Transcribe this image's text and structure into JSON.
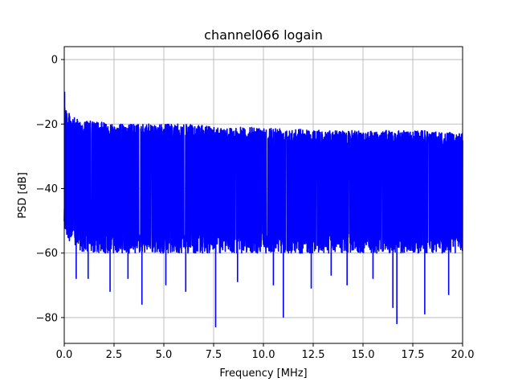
{
  "chart_data": {
    "type": "line",
    "title": "channel066 logain",
    "xlabel": "Frequency [MHz]",
    "ylabel": "PSD [dB]",
    "xlim": [
      0,
      20
    ],
    "ylim": [
      -88,
      4
    ],
    "xticks": [
      0,
      2.5,
      5,
      7.5,
      10,
      12.5,
      15,
      17.5,
      20
    ],
    "xtick_labels": [
      "0.0",
      "2.5",
      "5.0",
      "7.5",
      "10.0",
      "12.5",
      "15.0",
      "17.5",
      "20.0"
    ],
    "yticks": [
      0,
      -20,
      -40,
      -60,
      -80
    ],
    "ytick_labels": [
      "0",
      "−20",
      "−40",
      "−60",
      "−80"
    ],
    "grid": true,
    "series": [
      {
        "color": "#0000ff",
        "upper_envelope": {
          "x": [
            0,
            0.05,
            0.15,
            0.3,
            0.5,
            0.8,
            1.2,
            2,
            3,
            4,
            5,
            6,
            7,
            8,
            9,
            10,
            11,
            12,
            13,
            14,
            15,
            16,
            17,
            18,
            19,
            20
          ],
          "y": [
            -10,
            -13,
            -16,
            -17,
            -18,
            -19,
            -19,
            -19.5,
            -20,
            -20,
            -20,
            -20,
            -20.5,
            -21,
            -21,
            -21,
            -21,
            -21.5,
            -22,
            -22,
            -22,
            -22,
            -22,
            -22,
            -22.5,
            -23
          ]
        },
        "lower_envelope": {
          "x": [
            0,
            0.1,
            0.5,
            1,
            2,
            4,
            6,
            8,
            10,
            12,
            14,
            16,
            18,
            20
          ],
          "y": [
            -52,
            -55,
            -58,
            -60,
            -60,
            -60,
            -60,
            -60,
            -60,
            -60,
            -60,
            -60,
            -60,
            -60
          ]
        },
        "deep_dips": {
          "x": [
            0.6,
            1.2,
            2.3,
            3.2,
            3.9,
            5.1,
            6.1,
            7.6,
            8.7,
            10.5,
            11.0,
            12.4,
            13.4,
            14.2,
            15.5,
            16.5,
            16.7,
            18.1,
            19.3
          ],
          "y": [
            -68,
            -68,
            -72,
            -68,
            -76,
            -70,
            -72,
            -83,
            -69,
            -70,
            -80,
            -71,
            -67,
            -70,
            -68,
            -77,
            -82,
            -79,
            -73
          ]
        }
      }
    ]
  }
}
